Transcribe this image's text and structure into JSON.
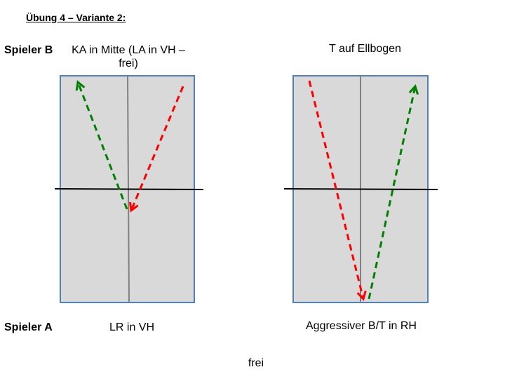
{
  "title": "Übung 4 – Variante 2:",
  "player_b": {
    "label": "Spieler B",
    "left_action": "KA in Mitte (LA in VH – frei)",
    "right_action": "T auf Ellbogen"
  },
  "player_a": {
    "label": "Spieler A",
    "left_action": "LR in VH",
    "right_action": "Aggressiver B/T in RH"
  },
  "footer": "frei",
  "colors": {
    "table_fill": "#d9d9d9",
    "table_border": "#4f81bd",
    "center_line": "#808080",
    "net": "#000000",
    "arrow_green": "#008000",
    "arrow_red": "#ff0000"
  }
}
